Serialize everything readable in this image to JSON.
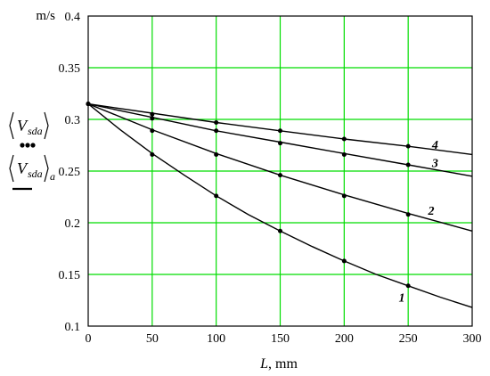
{
  "chart_data": {
    "type": "line",
    "title": "",
    "y_unit_label": "m/s",
    "xlabel": {
      "symbol": "L",
      "unit": ", mm"
    },
    "xlim": [
      0,
      300
    ],
    "ylim": [
      0.1,
      0.4
    ],
    "x_ticks": [
      0,
      50,
      100,
      150,
      200,
      250,
      300
    ],
    "y_ticks": [
      "0.1",
      "0.15",
      "0.2",
      "0.25",
      "0.3",
      "0.35",
      "0.4"
    ],
    "grid": true,
    "grid_color": "#00dd00",
    "legend": [
      {
        "symbol": "V",
        "subscript": "sda",
        "suffix": "",
        "style": "dots"
      },
      {
        "symbol": "V",
        "subscript": "sda",
        "suffix": "a",
        "style": "line"
      }
    ],
    "series": [
      {
        "label": "1",
        "points": [
          {
            "x": 0,
            "y": 0.315
          },
          {
            "x": 50,
            "y": 0.266
          },
          {
            "x": 100,
            "y": 0.226
          },
          {
            "x": 150,
            "y": 0.192
          },
          {
            "x": 200,
            "y": 0.163
          },
          {
            "x": 250,
            "y": 0.139
          }
        ],
        "line": [
          {
            "x": 0,
            "y": 0.315
          },
          {
            "x": 25,
            "y": 0.29
          },
          {
            "x": 50,
            "y": 0.267
          },
          {
            "x": 75,
            "y": 0.246
          },
          {
            "x": 100,
            "y": 0.226
          },
          {
            "x": 125,
            "y": 0.208
          },
          {
            "x": 150,
            "y": 0.192
          },
          {
            "x": 175,
            "y": 0.177
          },
          {
            "x": 200,
            "y": 0.163
          },
          {
            "x": 225,
            "y": 0.15
          },
          {
            "x": 250,
            "y": 0.139
          },
          {
            "x": 275,
            "y": 0.128
          },
          {
            "x": 300,
            "y": 0.118
          }
        ]
      },
      {
        "label": "2",
        "points": [
          {
            "x": 0,
            "y": 0.315
          },
          {
            "x": 50,
            "y": 0.289
          },
          {
            "x": 100,
            "y": 0.266
          },
          {
            "x": 150,
            "y": 0.246
          },
          {
            "x": 200,
            "y": 0.226
          },
          {
            "x": 250,
            "y": 0.208
          }
        ],
        "line": [
          {
            "x": 0,
            "y": 0.315
          },
          {
            "x": 50,
            "y": 0.29
          },
          {
            "x": 100,
            "y": 0.267
          },
          {
            "x": 150,
            "y": 0.246
          },
          {
            "x": 200,
            "y": 0.227
          },
          {
            "x": 250,
            "y": 0.209
          },
          {
            "x": 300,
            "y": 0.192
          }
        ]
      },
      {
        "label": "3",
        "points": [
          {
            "x": 0,
            "y": 0.315
          },
          {
            "x": 50,
            "y": 0.301
          },
          {
            "x": 100,
            "y": 0.289
          },
          {
            "x": 150,
            "y": 0.277
          },
          {
            "x": 200,
            "y": 0.266
          },
          {
            "x": 250,
            "y": 0.256
          }
        ],
        "line": [
          {
            "x": 0,
            "y": 0.315
          },
          {
            "x": 50,
            "y": 0.302
          },
          {
            "x": 100,
            "y": 0.289
          },
          {
            "x": 150,
            "y": 0.278
          },
          {
            "x": 200,
            "y": 0.267
          },
          {
            "x": 250,
            "y": 0.256
          },
          {
            "x": 300,
            "y": 0.245
          }
        ]
      },
      {
        "label": "4",
        "points": [
          {
            "x": 0,
            "y": 0.315
          },
          {
            "x": 50,
            "y": 0.305
          },
          {
            "x": 100,
            "y": 0.297
          },
          {
            "x": 150,
            "y": 0.289
          },
          {
            "x": 200,
            "y": 0.281
          },
          {
            "x": 250,
            "y": 0.274
          }
        ],
        "line": [
          {
            "x": 0,
            "y": 0.315
          },
          {
            "x": 50,
            "y": 0.306
          },
          {
            "x": 100,
            "y": 0.297
          },
          {
            "x": 150,
            "y": 0.289
          },
          {
            "x": 200,
            "y": 0.281
          },
          {
            "x": 250,
            "y": 0.274
          },
          {
            "x": 300,
            "y": 0.266
          }
        ]
      }
    ]
  }
}
